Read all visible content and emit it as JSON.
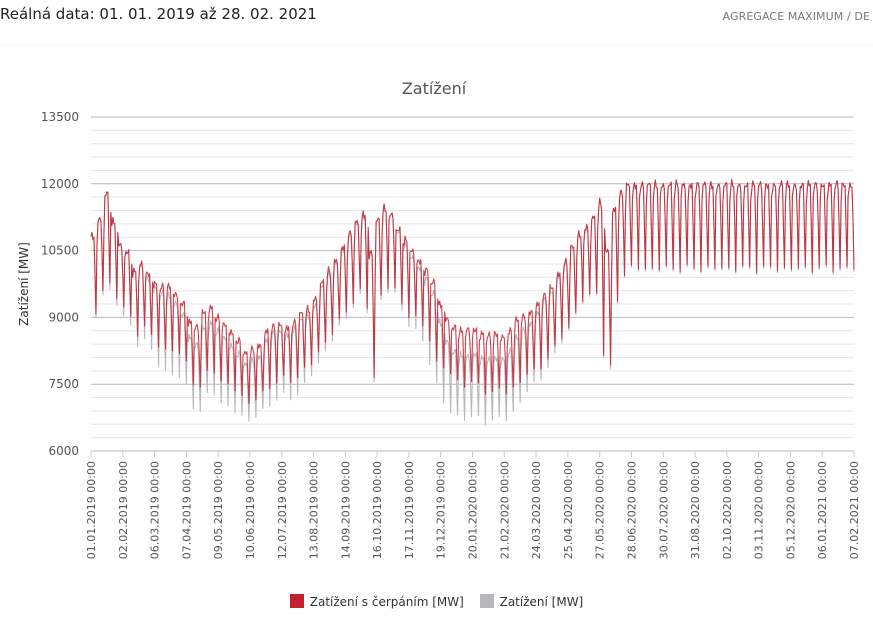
{
  "header": {
    "title": "Reálná data: 01. 01. 2019 až 28. 02. 2021",
    "aggregation": "AGREGACE MAXIMUM / DE"
  },
  "colors": {
    "series_pumping": "#c2202e",
    "series_load": "#b7b7bc",
    "grid": "#e6e6e6",
    "grid_major": "#b9b9b9"
  },
  "chart_data": {
    "type": "line",
    "title": "Zatížení",
    "ylabel": "Zatížení [MW]",
    "xlabel": "",
    "ylim": [
      6000,
      13500
    ],
    "yticks": [
      6000,
      7500,
      9000,
      10500,
      12000,
      13500
    ],
    "y_minor_step": 300,
    "x_range": [
      "2019-01-01",
      "2021-02-07"
    ],
    "xtick_labels": [
      "01.01.2019 00:00",
      "02.02.2019 00:00",
      "06.03.2019 00:00",
      "07.04.2019 00:00",
      "09.05.2019 00:00",
      "10.06.2019 00:00",
      "12.07.2019 00:00",
      "13.08.2019 00:00",
      "14.09.2019 00:00",
      "16.10.2019 00:00",
      "17.11.2019 00:00",
      "19.12.2019 00:00",
      "20.01.2020 00:00",
      "21.02.2020 00:00",
      "24.03.2020 00:00",
      "25.04.2020 00:00",
      "27.05.2020 00:00",
      "28.06.2020 00:00",
      "30.07.2020 00:00",
      "31.08.2020 00:00",
      "02.10.2020 00:00",
      "03.11.2020 00:00",
      "05.12.2020 00:00",
      "06.01.2021 00:00",
      "07.02.2021 00:00"
    ],
    "grid": true,
    "legend_position": "bottom-center",
    "series": [
      {
        "name": "Zatížení s čerpáním [MW]",
        "color": "#c2202e",
        "weekly": {
          "start": "2019-01-01",
          "weekday_max": [
            10850,
            11250,
            11800,
            11150,
            10650,
            10500,
            10050,
            10200,
            10000,
            9800,
            9700,
            9700,
            9550,
            9350,
            8900,
            8800,
            9150,
            9250,
            9000,
            8850,
            8700,
            8500,
            8200,
            8300,
            8400,
            8700,
            8800,
            8850,
            8800,
            8900,
            9100,
            9200,
            9450,
            9800,
            10050,
            10300,
            10600,
            10900,
            11150,
            11350,
            10500,
            11200,
            11450,
            11350,
            11000,
            10750,
            10500,
            10300,
            10100,
            9800,
            9300,
            9000,
            8800,
            8700,
            8750,
            8750,
            8650,
            8600,
            8650,
            8600,
            8700,
            8950,
            9050,
            9150,
            9300,
            9500,
            9700,
            10000,
            10250,
            10600,
            10900,
            11050,
            11250,
            11600,
            10550,
            11450,
            11800,
            12000
          ],
          "weekend_min": [
            9000,
            9500,
            9650,
            9400,
            9100,
            8900,
            8600,
            8700,
            8500,
            8300,
            8200,
            8200,
            8100,
            7900,
            7500,
            7350,
            7650,
            7750,
            7500,
            7400,
            7300,
            7150,
            7050,
            7100,
            7200,
            7400,
            7500,
            7550,
            7500,
            7600,
            7800,
            7900,
            8100,
            8400,
            8600,
            8800,
            9050,
            9300,
            9500,
            9100,
            7500,
            9400,
            9600,
            9500,
            9200,
            9000,
            8900,
            8700,
            8450,
            7900,
            7800,
            7650,
            7500,
            7450,
            7450,
            7400,
            7300,
            7250,
            7300,
            7250,
            7350,
            7500,
            7650,
            7700,
            7850,
            8000,
            8200,
            8500,
            8700,
            9000,
            9300,
            9400,
            9500,
            8000,
            7700,
            9300,
            9900,
            10000
          ]
        }
      },
      {
        "name": "Zatížení [MW]",
        "color": "#b7b7bc",
        "weekly": {
          "start": "2019-01-01",
          "weekday_max": [
            10850,
            11250,
            11800,
            11150,
            10650,
            10500,
            10050,
            10150,
            9900,
            9700,
            9550,
            9500,
            9350,
            9100,
            8550,
            8400,
            8800,
            8900,
            8700,
            8550,
            8400,
            8200,
            7950,
            8050,
            8150,
            8500,
            8650,
            8700,
            8650,
            8750,
            8950,
            9050,
            9300,
            9700,
            9950,
            10250,
            10550,
            10850,
            11100,
            11300,
            10500,
            11200,
            11450,
            11350,
            10950,
            10650,
            10350,
            10150,
            9900,
            9550,
            8900,
            8500,
            8250,
            8150,
            8150,
            8200,
            8100,
            8050,
            8100,
            8100,
            8250,
            8550,
            8750,
            8900,
            9100,
            9400,
            9600,
            9950,
            10200,
            10550,
            10850,
            11000,
            11250,
            11600,
            10550,
            11450,
            11800,
            12000
          ],
          "weekend_min": [
            8900,
            9400,
            9500,
            9250,
            8900,
            8700,
            8350,
            8400,
            8150,
            7850,
            7700,
            7650,
            7550,
            7350,
            6950,
            6800,
            7150,
            7250,
            7000,
            6900,
            6800,
            6700,
            6650,
            6700,
            6800,
            7000,
            7100,
            7150,
            7100,
            7200,
            7450,
            7650,
            7850,
            8200,
            8450,
            8650,
            8900,
            9200,
            9400,
            9000,
            7400,
            9300,
            9500,
            9400,
            9050,
            8800,
            8600,
            8350,
            7900,
            7400,
            7000,
            6750,
            6700,
            6700,
            6650,
            6650,
            6600,
            6600,
            6650,
            6650,
            6800,
            7050,
            7250,
            7400,
            7600,
            7800,
            8050,
            8400,
            8650,
            8950,
            9250,
            9350,
            9450,
            7950,
            7600,
            9250,
            9850,
            9950
          ]
        }
      }
    ]
  },
  "legend": {
    "items": [
      {
        "label": "Zatížení s čerpáním [MW]",
        "color": "#c2202e"
      },
      {
        "label": "Zatížení [MW]",
        "color": "#b7b7bc"
      }
    ]
  }
}
